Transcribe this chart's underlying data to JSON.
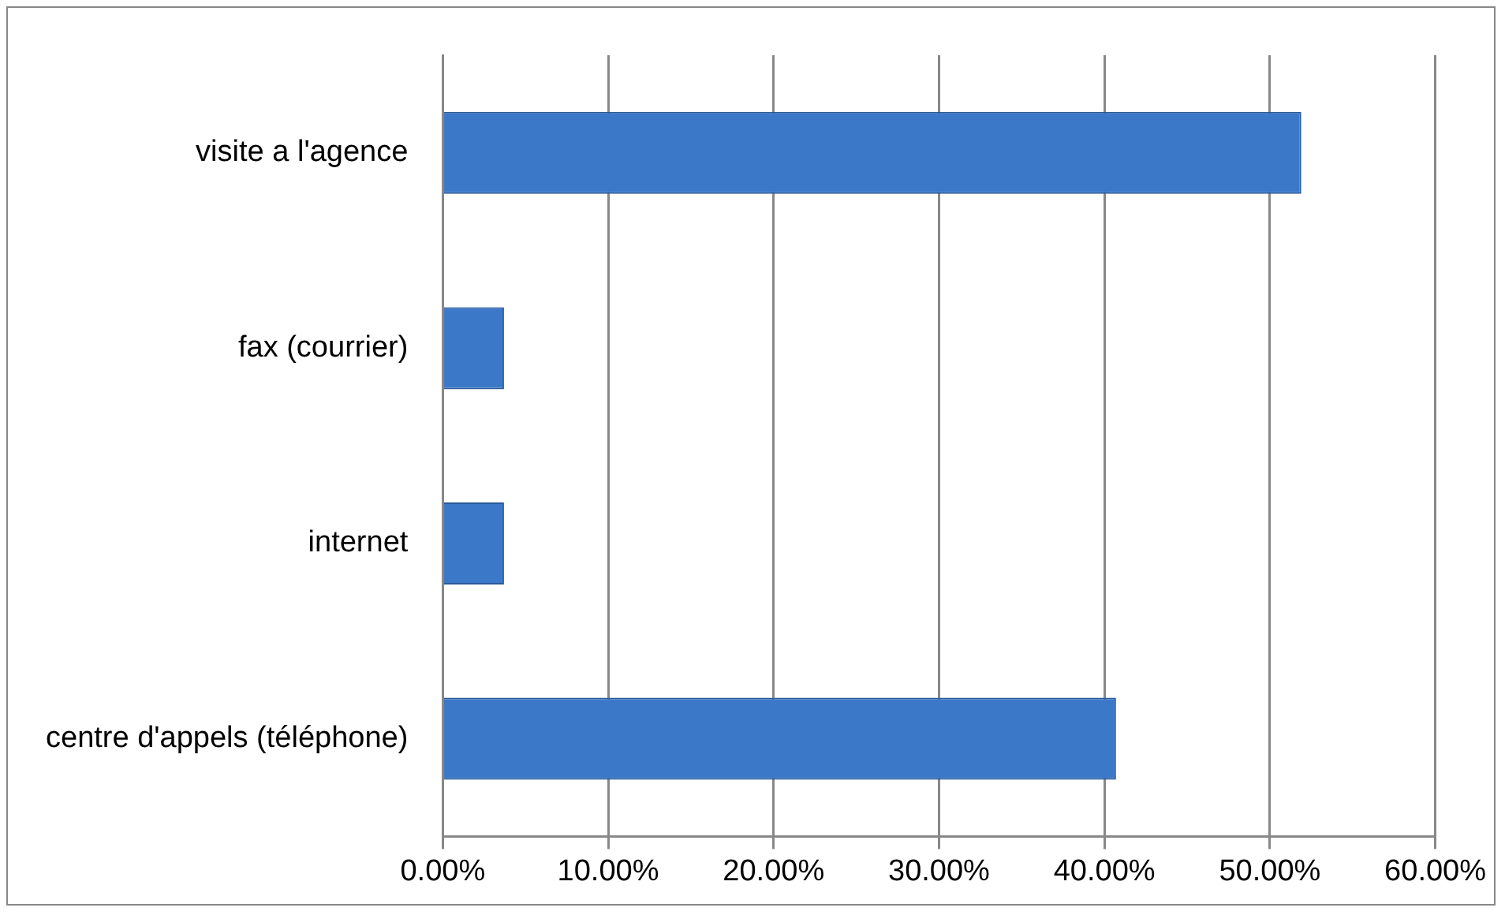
{
  "chart_data": {
    "type": "bar",
    "orientation": "horizontal",
    "categories": [
      "visite a l'agence",
      "fax (courrier)",
      "internet",
      "centre d'appels (téléphone)"
    ],
    "values": [
      51.9,
      3.7,
      3.7,
      40.7
    ],
    "color": "#3c78c8",
    "xlim": [
      0,
      60
    ],
    "xticks": [
      {
        "value": 0,
        "label": "0.00%"
      },
      {
        "value": 10,
        "label": "10.00%"
      },
      {
        "value": 20,
        "label": "20.00%"
      },
      {
        "value": 30,
        "label": "30.00%"
      },
      {
        "value": 40,
        "label": "40.00%"
      },
      {
        "value": 50,
        "label": "50.00%"
      },
      {
        "value": 60,
        "label": "60.00%"
      }
    ],
    "grid": "x",
    "legend": false
  }
}
